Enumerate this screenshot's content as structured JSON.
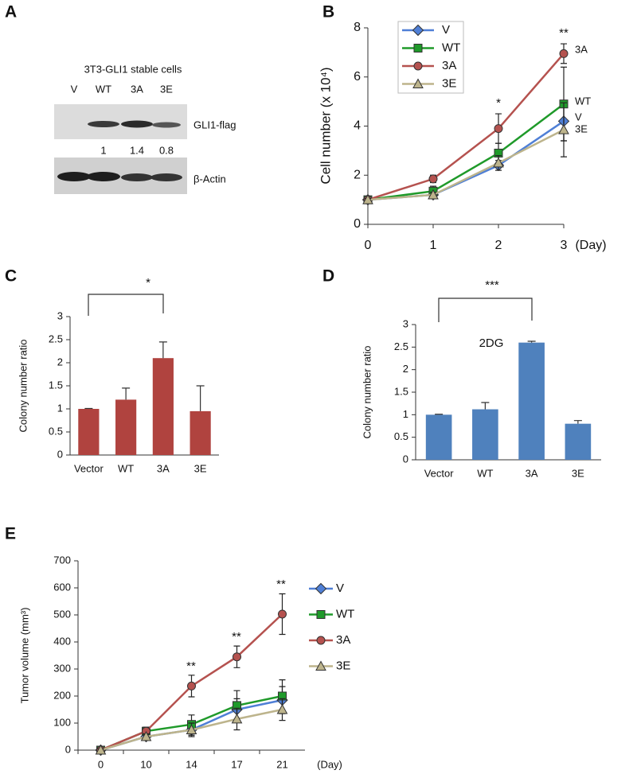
{
  "blot": {
    "panel": "A",
    "title": "3T3-GLI1 stable cells",
    "lanes": [
      "V",
      "WT",
      "3A",
      "3E"
    ],
    "bands": [
      "GLI1-flag",
      "β-Actin"
    ],
    "quantification": [
      1,
      1.4,
      0.8
    ]
  },
  "chart_data": [
    {
      "panel": "B",
      "type": "line",
      "y_label": "Cell number (x 10⁴)",
      "x_label": "(Day)",
      "x": [
        0,
        1,
        2,
        3
      ],
      "xlim": [
        0,
        3
      ],
      "xticks": [
        0,
        1,
        2,
        3
      ],
      "ylim": [
        0,
        8
      ],
      "yticks": [
        0,
        2,
        4,
        6,
        8
      ],
      "legend": "upper left",
      "annotations": [
        "*",
        "**"
      ],
      "series": [
        {
          "name": "V",
          "color": "#4f7fd6",
          "marker": "diamond",
          "values": [
            1,
            1.2,
            2.4,
            4.2
          ],
          "errors": [
            0.05,
            0.1,
            0.2,
            0.8
          ]
        },
        {
          "name": "WT",
          "color": "#1f9a2a",
          "marker": "square",
          "values": [
            1,
            1.35,
            2.9,
            4.9
          ],
          "errors": [
            0.05,
            0.2,
            0.4,
            1.5
          ]
        },
        {
          "name": "3A",
          "color": "#b5524f",
          "marker": "circle",
          "values": [
            1,
            1.85,
            3.9,
            6.95
          ],
          "errors": [
            0.05,
            0.15,
            0.6,
            0.4
          ]
        },
        {
          "name": "3E",
          "color": "#bdb48c",
          "marker": "triangle",
          "values": [
            1,
            1.2,
            2.5,
            3.85
          ],
          "errors": [
            0.05,
            0.1,
            0.3,
            1.1
          ]
        }
      ]
    },
    {
      "panel": "C",
      "type": "bar",
      "y_label": "Colony number ratio",
      "categories": [
        "Vector",
        "WT",
        "3A",
        "3E"
      ],
      "values": [
        1,
        1.2,
        2.1,
        0.95
      ],
      "errors": [
        0.01,
        0.25,
        0.35,
        0.55
      ],
      "color": "#b0433f",
      "ylim": [
        0,
        3
      ],
      "yticks": [
        0,
        0.5,
        1,
        1.5,
        2,
        2.5,
        3
      ],
      "annotations": [
        "*"
      ]
    },
    {
      "panel": "D",
      "type": "bar",
      "y_label": "Colony number ratio",
      "categories": [
        "Vector",
        "WT",
        "3A",
        "3E"
      ],
      "values": [
        1,
        1.12,
        2.6,
        0.8
      ],
      "errors": [
        0.01,
        0.15,
        0.03,
        0.07
      ],
      "color": "#4f81bd",
      "ylim": [
        0,
        3
      ],
      "yticks": [
        0,
        0.5,
        1,
        1.5,
        2,
        2.5,
        3
      ],
      "annotations": [
        "***",
        "2DG"
      ]
    },
    {
      "panel": "E",
      "type": "line",
      "y_label": "Tumor volume (mm³)",
      "x_label": "(Day)",
      "categories": [
        "0",
        "10",
        "14",
        "17",
        "21"
      ],
      "ylim": [
        0,
        700
      ],
      "yticks": [
        0,
        100,
        200,
        300,
        400,
        500,
        600,
        700
      ],
      "legend": "right",
      "annotations": [
        "**",
        "**",
        "**"
      ],
      "series": [
        {
          "name": "V",
          "color": "#4f7fd6",
          "marker": "diamond",
          "values": [
            0,
            50,
            75,
            150,
            185
          ],
          "errors": [
            5,
            10,
            20,
            40,
            50
          ]
        },
        {
          "name": "WT",
          "color": "#1f9a2a",
          "marker": "square",
          "values": [
            0,
            70,
            95,
            165,
            200
          ],
          "errors": [
            5,
            15,
            35,
            55,
            60
          ]
        },
        {
          "name": "3A",
          "color": "#b5524f",
          "marker": "circle",
          "values": [
            0,
            70,
            237,
            345,
            503
          ],
          "errors": [
            5,
            15,
            40,
            40,
            75
          ]
        },
        {
          "name": "3E",
          "color": "#bdb48c",
          "marker": "triangle",
          "values": [
            0,
            50,
            75,
            115,
            150
          ],
          "errors": [
            5,
            10,
            25,
            40,
            40
          ]
        }
      ]
    }
  ]
}
